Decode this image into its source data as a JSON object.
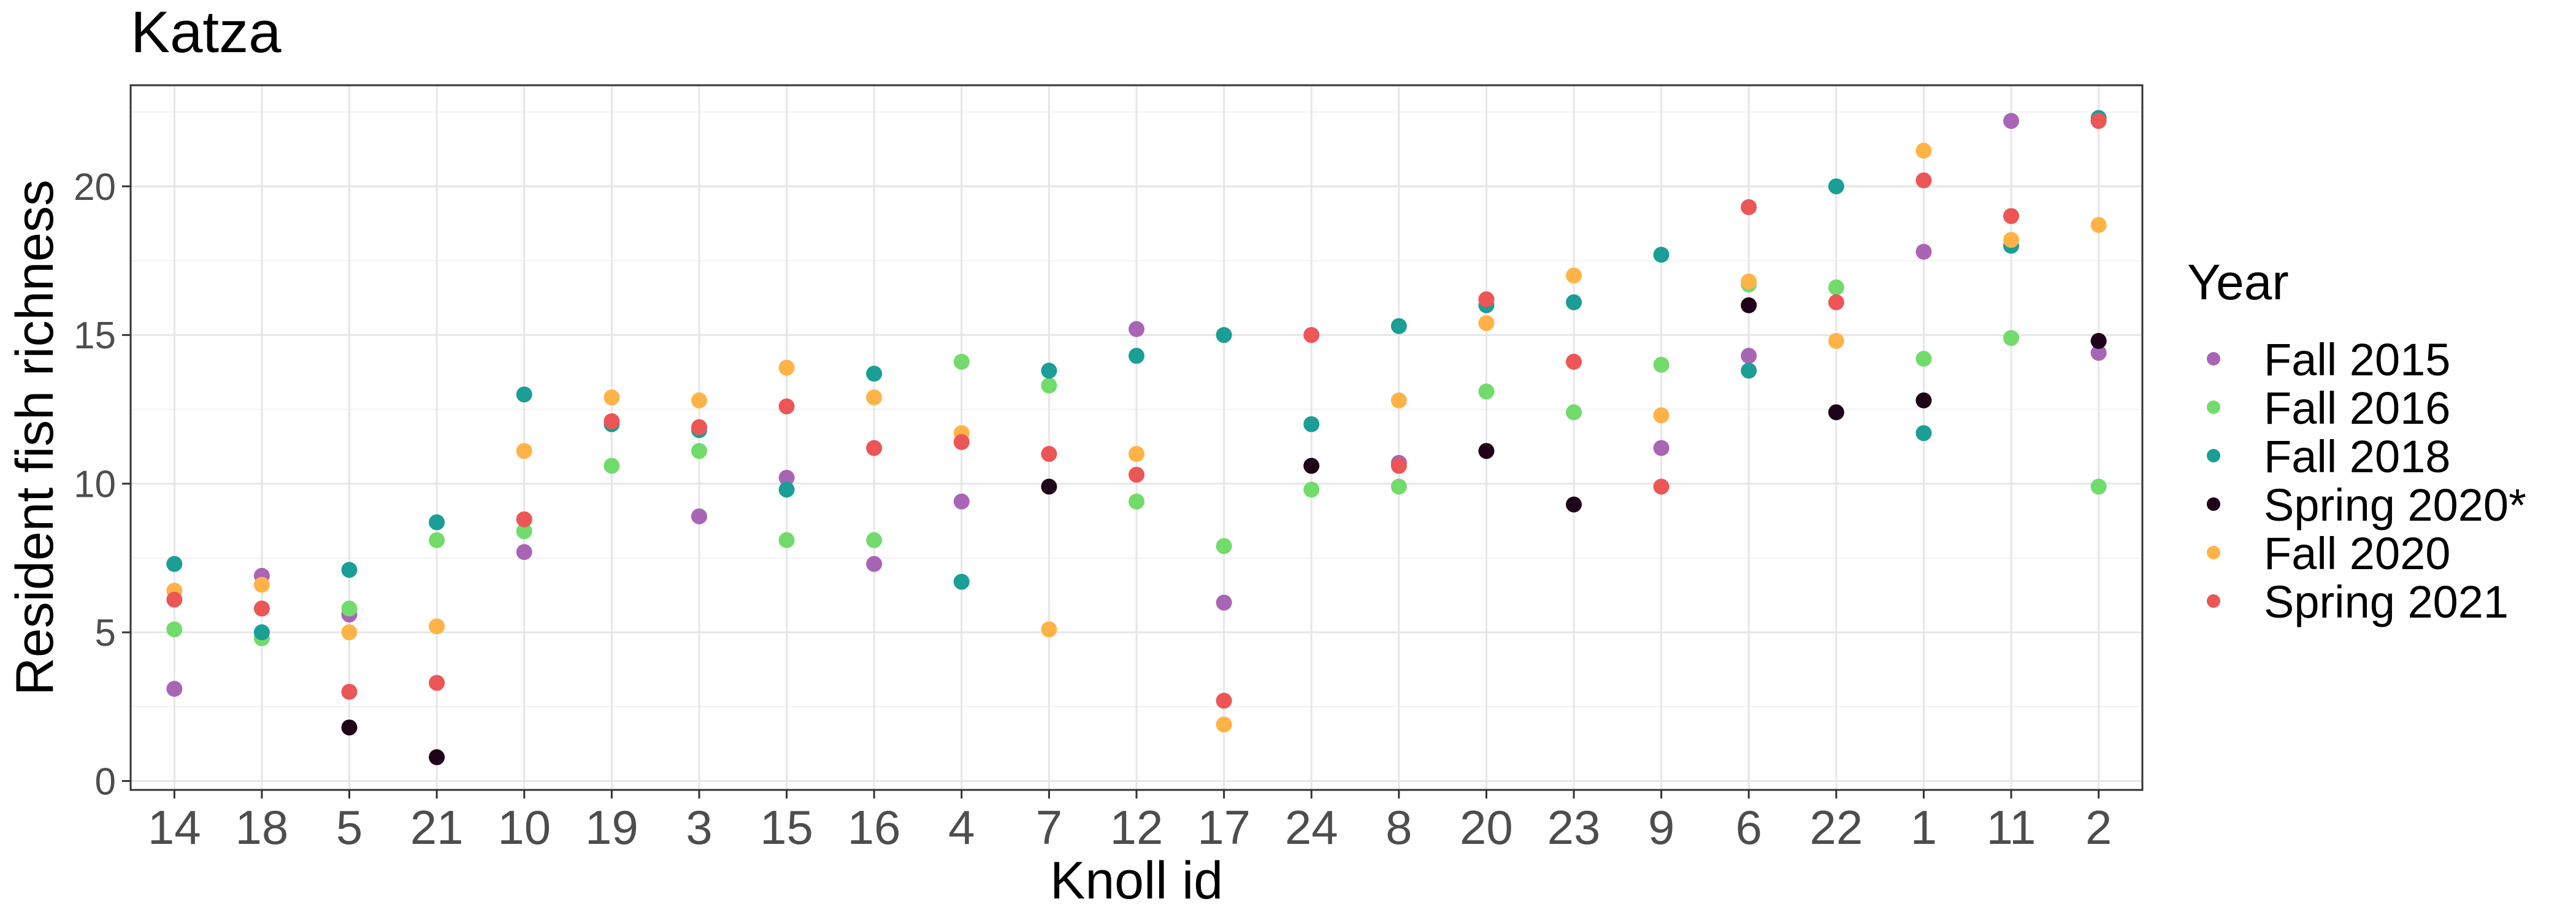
{
  "chart_data": {
    "type": "scatter",
    "title": "Katza",
    "xlabel": "Knoll id",
    "ylabel": "Resident fish richness",
    "categories": [
      "14",
      "18",
      "5",
      "21",
      "10",
      "19",
      "3",
      "15",
      "16",
      "4",
      "7",
      "12",
      "17",
      "24",
      "8",
      "20",
      "23",
      "9",
      "6",
      "22",
      "1",
      "11",
      "2"
    ],
    "ylim": [
      -0.3,
      23.4
    ],
    "yticks": [
      0,
      5,
      10,
      15,
      20
    ],
    "grid": true,
    "legend_title": "Year",
    "legend_position": "right",
    "series": [
      {
        "name": "Fall 2015",
        "color": "#A865B5",
        "values": [
          3.1,
          6.9,
          5.6,
          null,
          7.7,
          null,
          8.9,
          10.2,
          7.3,
          9.4,
          null,
          15.2,
          6.0,
          null,
          10.7,
          null,
          null,
          11.2,
          14.3,
          null,
          17.8,
          22.2,
          14.4
        ]
      },
      {
        "name": "Fall 2016",
        "color": "#71DC6B",
        "values": [
          5.1,
          4.8,
          5.8,
          8.1,
          8.4,
          10.6,
          11.1,
          8.1,
          8.1,
          14.1,
          13.3,
          9.4,
          7.9,
          9.8,
          9.9,
          13.1,
          12.4,
          14.0,
          16.7,
          16.6,
          14.2,
          14.9,
          9.9
        ]
      },
      {
        "name": "Fall 2018",
        "color": "#1A9E96",
        "values": [
          7.3,
          5.0,
          7.1,
          8.7,
          13.0,
          12.0,
          11.8,
          9.8,
          13.7,
          6.7,
          13.8,
          14.3,
          15.0,
          12.0,
          15.3,
          16.0,
          16.1,
          17.7,
          13.8,
          20.0,
          11.7,
          18.0,
          22.3
        ]
      },
      {
        "name": "Spring 2020*",
        "color": "#1F0318",
        "values": [
          null,
          null,
          1.8,
          0.8,
          null,
          null,
          null,
          null,
          null,
          null,
          9.9,
          null,
          null,
          10.6,
          null,
          11.1,
          9.3,
          null,
          16.0,
          12.4,
          12.8,
          null,
          14.8
        ]
      },
      {
        "name": "Fall 2020",
        "color": "#FFB347",
        "values": [
          6.4,
          6.6,
          5.0,
          5.2,
          11.1,
          12.9,
          12.8,
          13.9,
          12.9,
          11.7,
          5.1,
          11.0,
          1.9,
          null,
          12.8,
          15.4,
          17.0,
          12.3,
          16.8,
          14.8,
          21.2,
          18.2,
          18.7
        ]
      },
      {
        "name": "Spring 2021",
        "color": "#EC5656",
        "values": [
          6.1,
          5.8,
          3.0,
          3.3,
          8.8,
          12.1,
          11.9,
          12.6,
          11.2,
          11.4,
          11.0,
          10.3,
          2.7,
          15.0,
          10.6,
          16.2,
          14.1,
          9.9,
          19.3,
          16.1,
          20.2,
          19.0,
          22.2
        ]
      }
    ]
  }
}
